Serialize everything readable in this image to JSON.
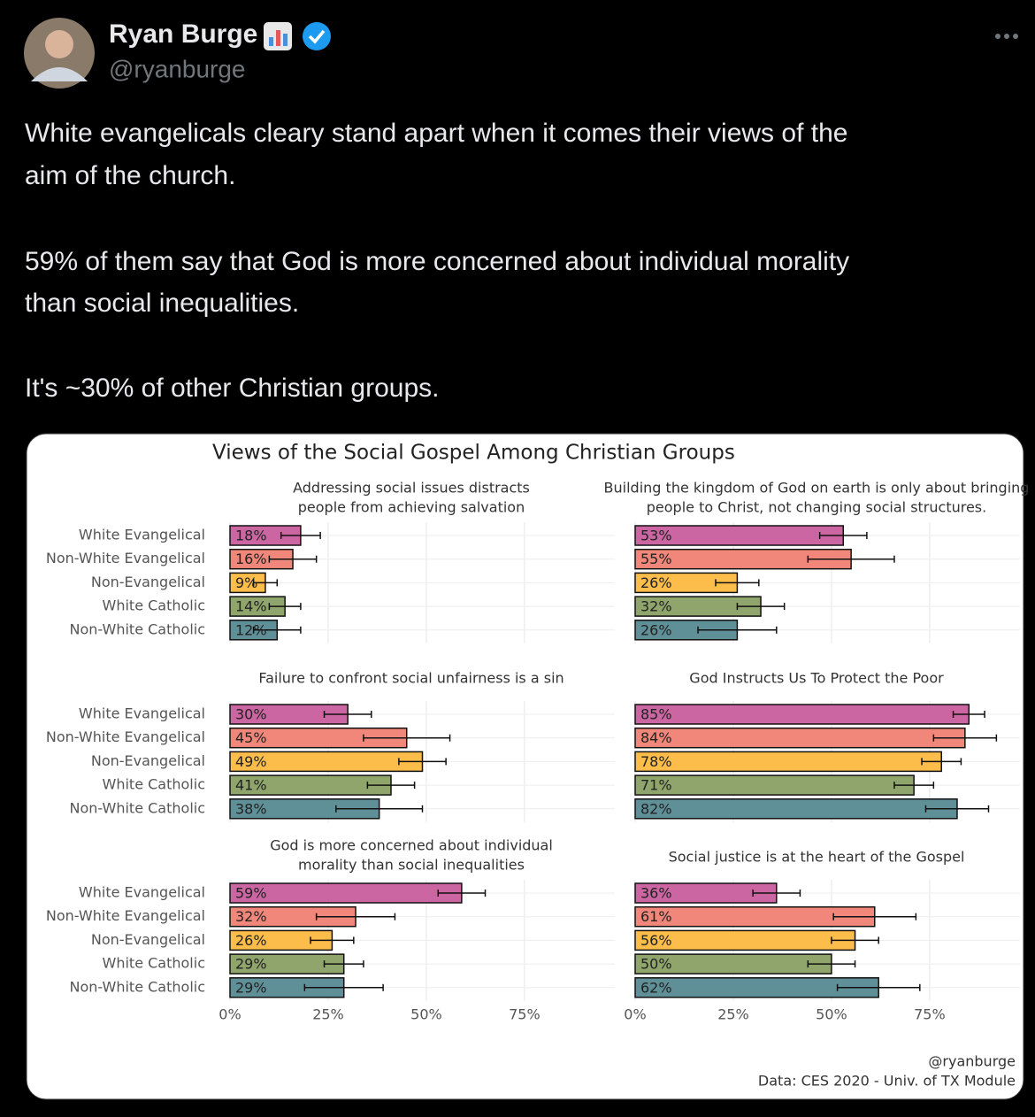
{
  "tweet": {
    "author_name": "Ryan Burge",
    "handle": "@ryanburge",
    "text": [
      "White evangelicals cleary stand apart when it comes their views of the",
      "aim of the church.",
      "59% of them say that God is more concerned about individual morality",
      "than social inequalities.",
      "It's ~30% of other Christian groups."
    ]
  },
  "figure": {
    "title": "Views of the Social Gospel Among Christian Groups",
    "credit": "@ryanburge",
    "source": "Data: CES 2020 - Univ. of TX Module"
  },
  "chart_data": [
    {
      "type": "bar",
      "title": [
        "Addressing social issues distracts",
        "people from achieving salvation"
      ],
      "categories": [
        "White Evangelical",
        "Non-White Evangelical",
        "Non-Evangelical",
        "White Catholic",
        "Non-White Catholic"
      ],
      "values": [
        18,
        16,
        9,
        14,
        12
      ],
      "value_labels": [
        "18%",
        "16%",
        "9%",
        "14%",
        "12%"
      ],
      "errors": [
        5,
        6,
        3,
        4,
        6
      ],
      "colors": [
        "#cc66a3",
        "#f0877a",
        "#fdbd4b",
        "#8fa56b",
        "#5f9098"
      ],
      "xlim": [
        0,
        98
      ],
      "xticks": [
        {
          "value": 0,
          "label": "0%"
        },
        {
          "value": 25,
          "label": "25%"
        },
        {
          "value": 50,
          "label": "50%"
        },
        {
          "value": 75,
          "label": "75%"
        }
      ],
      "grid": true
    },
    {
      "type": "bar",
      "title": [
        "Building the kingdom of God on earth is only about bringing",
        "people to Christ, not changing social structures."
      ],
      "values": [
        53,
        55,
        26,
        32,
        26
      ],
      "value_labels": [
        "53%",
        "55%",
        "26%",
        "32%",
        "26%"
      ],
      "errors": [
        6,
        11,
        5.5,
        6,
        10
      ],
      "colors": [
        "#cc66a3",
        "#f0877a",
        "#fdbd4b",
        "#8fa56b",
        "#5f9098"
      ],
      "xlim": [
        0,
        98
      ],
      "xticks": [
        {
          "value": 0,
          "label": "0%"
        },
        {
          "value": 25,
          "label": "25%"
        },
        {
          "value": 50,
          "label": "50%"
        },
        {
          "value": 75,
          "label": "75%"
        }
      ],
      "grid": true
    },
    {
      "type": "bar",
      "title": [
        "Failure to confront social unfairness is a sin"
      ],
      "categories": [
        "White Evangelical",
        "Non-White Evangelical",
        "Non-Evangelical",
        "White Catholic",
        "Non-White Catholic"
      ],
      "values": [
        30,
        45,
        49,
        41,
        38
      ],
      "value_labels": [
        "30%",
        "45%",
        "49%",
        "41%",
        "38%"
      ],
      "errors": [
        6,
        11,
        6,
        6,
        11
      ],
      "colors": [
        "#cc66a3",
        "#f0877a",
        "#fdbd4b",
        "#8fa56b",
        "#5f9098"
      ],
      "xlim": [
        0,
        98
      ],
      "xticks": [
        {
          "value": 0,
          "label": "0%"
        },
        {
          "value": 25,
          "label": "25%"
        },
        {
          "value": 50,
          "label": "50%"
        },
        {
          "value": 75,
          "label": "75%"
        }
      ],
      "grid": true
    },
    {
      "type": "bar",
      "title": [
        "God Instructs Us To Protect the Poor"
      ],
      "values": [
        85,
        84,
        78,
        71,
        82
      ],
      "value_labels": [
        "85%",
        "84%",
        "78%",
        "71%",
        "82%"
      ],
      "errors": [
        4,
        8,
        5,
        5,
        8
      ],
      "colors": [
        "#cc66a3",
        "#f0877a",
        "#fdbd4b",
        "#8fa56b",
        "#5f9098"
      ],
      "xlim": [
        0,
        98
      ],
      "xticks": [
        {
          "value": 0,
          "label": "0%"
        },
        {
          "value": 25,
          "label": "25%"
        },
        {
          "value": 50,
          "label": "50%"
        },
        {
          "value": 75,
          "label": "75%"
        }
      ],
      "grid": true
    },
    {
      "type": "bar",
      "title": [
        "God is more concerned about individual",
        "morality than social inequalities"
      ],
      "categories": [
        "White Evangelical",
        "Non-White Evangelical",
        "Non-Evangelical",
        "White Catholic",
        "Non-White Catholic"
      ],
      "values": [
        59,
        32,
        26,
        29,
        29
      ],
      "value_labels": [
        "59%",
        "32%",
        "26%",
        "29%",
        "29%"
      ],
      "errors": [
        6,
        10,
        5.5,
        5,
        10
      ],
      "colors": [
        "#cc66a3",
        "#f0877a",
        "#fdbd4b",
        "#8fa56b",
        "#5f9098"
      ],
      "xlim": [
        0,
        98
      ],
      "xticks": [
        {
          "value": 0,
          "label": "0%"
        },
        {
          "value": 25,
          "label": "25%"
        },
        {
          "value": 50,
          "label": "50%"
        },
        {
          "value": 75,
          "label": "75%"
        }
      ],
      "grid": true
    },
    {
      "type": "bar",
      "title": [
        "Social justice is at the heart of the Gospel"
      ],
      "values": [
        36,
        61,
        56,
        50,
        62
      ],
      "value_labels": [
        "36%",
        "61%",
        "56%",
        "50%",
        "62%"
      ],
      "errors": [
        6,
        10.5,
        6,
        6,
        10.5
      ],
      "colors": [
        "#cc66a3",
        "#f0877a",
        "#fdbd4b",
        "#8fa56b",
        "#5f9098"
      ],
      "xlim": [
        0,
        98
      ],
      "xticks": [
        {
          "value": 0,
          "label": "0%"
        },
        {
          "value": 25,
          "label": "25%"
        },
        {
          "value": 50,
          "label": "50%"
        },
        {
          "value": 75,
          "label": "75%"
        }
      ],
      "grid": true
    }
  ]
}
